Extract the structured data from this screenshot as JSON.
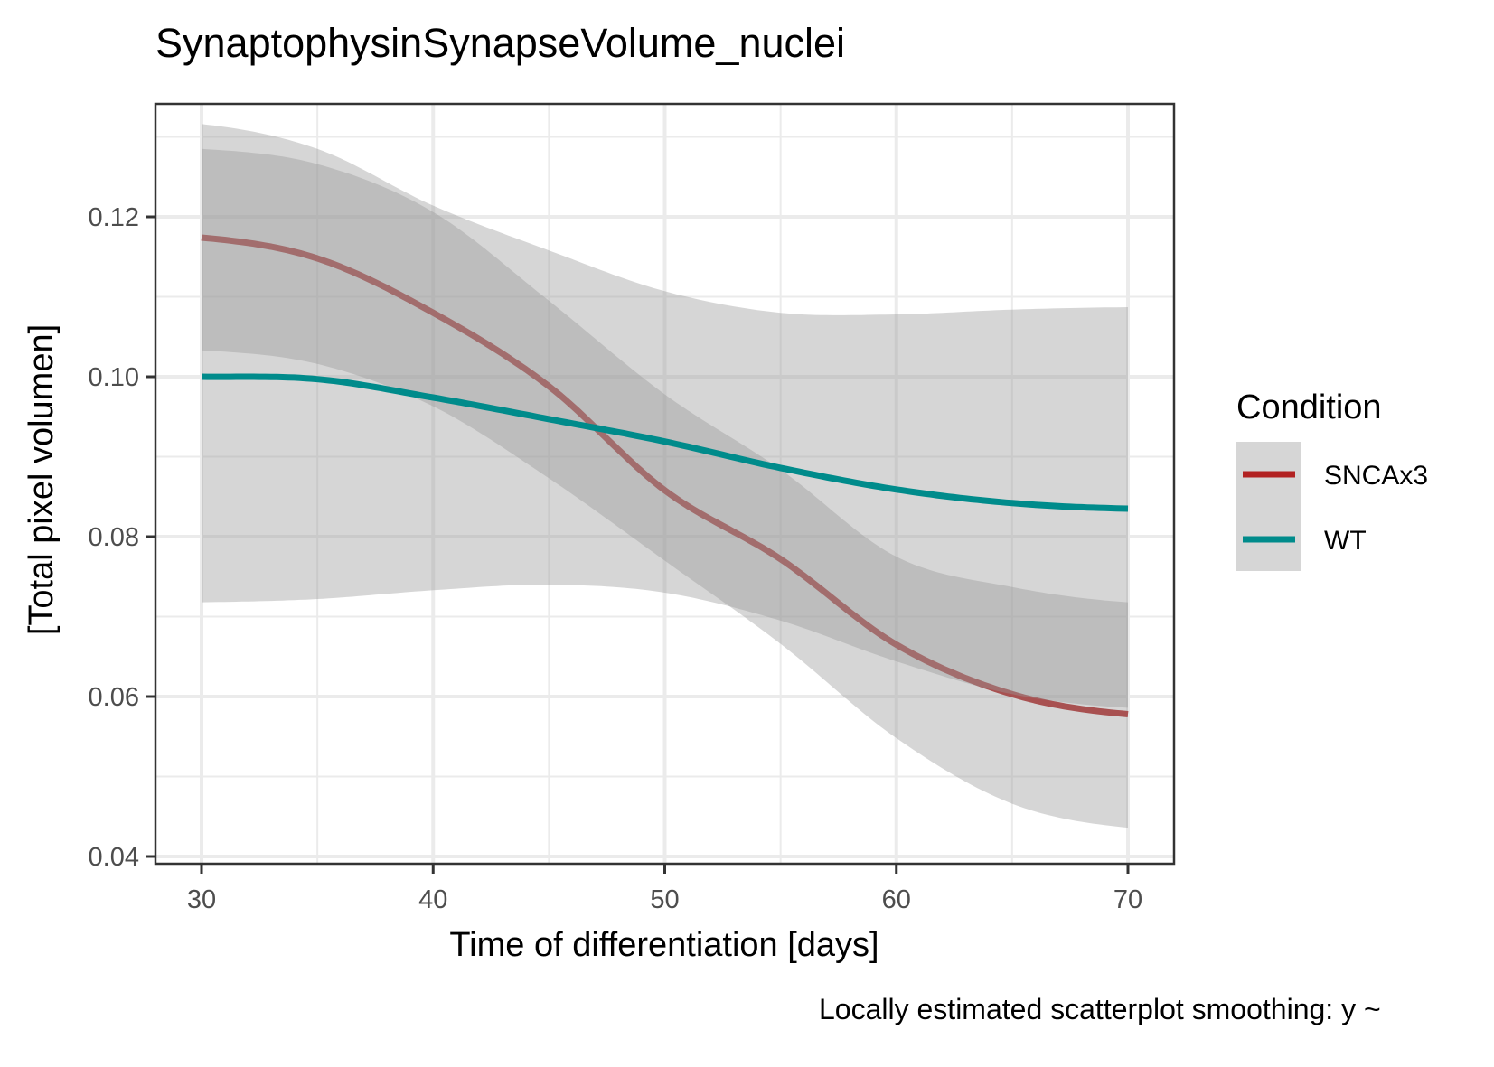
{
  "chart_data": {
    "type": "line",
    "title": "SynaptophysinSynapseVolume_nuclei",
    "xlabel": "Time of differentiation [days]",
    "ylabel": "[Total pixel volumen]",
    "caption": "Locally estimated scatterplot smoothing: y ~",
    "xlim": [
      28.2,
      72.0
    ],
    "ylim": [
      0.0392,
      0.1353
    ],
    "x_ticks": [
      30,
      40,
      50,
      60,
      70
    ],
    "x_tick_labels": [
      "30",
      "40",
      "50",
      "60",
      "70"
    ],
    "x_minor": [
      35,
      45,
      55,
      65
    ],
    "y_ticks": [
      0.04,
      0.06,
      0.08,
      0.1,
      0.12
    ],
    "y_tick_labels": [
      "0.04",
      "0.06",
      "0.08",
      "0.10",
      "0.12"
    ],
    "y_minor": [
      0.05,
      0.07,
      0.09,
      0.11,
      0.13
    ],
    "grid": true,
    "legend": {
      "title": "Condition",
      "position": "right"
    },
    "x": [
      30,
      35,
      40,
      45,
      50,
      55,
      60,
      65,
      70
    ],
    "series": [
      {
        "name": "SNCAx3",
        "color": "#b22222",
        "values": [
          0.1174,
          0.1148,
          0.108,
          0.0988,
          0.0858,
          0.0772,
          0.0665,
          0.0603,
          0.0578
        ],
        "ci_lower": [
          0.1033,
          0.1016,
          0.0963,
          0.0873,
          0.077,
          0.0666,
          0.0548,
          0.0466,
          0.0436
        ],
        "ci_upper": [
          0.1285,
          0.1266,
          0.1206,
          0.1095,
          0.0978,
          0.0884,
          0.0775,
          0.0737,
          0.0718
        ]
      },
      {
        "name": "WT",
        "color": "#008b8b",
        "values": [
          0.1,
          0.0997,
          0.0974,
          0.0947,
          0.0919,
          0.0886,
          0.0859,
          0.0842,
          0.0835
        ],
        "ci_lower": [
          0.0718,
          0.0722,
          0.0733,
          0.074,
          0.073,
          0.0695,
          0.0644,
          0.0603,
          0.0586
        ],
        "ci_upper": [
          0.1316,
          0.1285,
          0.1214,
          0.1158,
          0.1107,
          0.108,
          0.1078,
          0.1084,
          0.1087
        ]
      }
    ],
    "ribbon_color": "#999999"
  }
}
